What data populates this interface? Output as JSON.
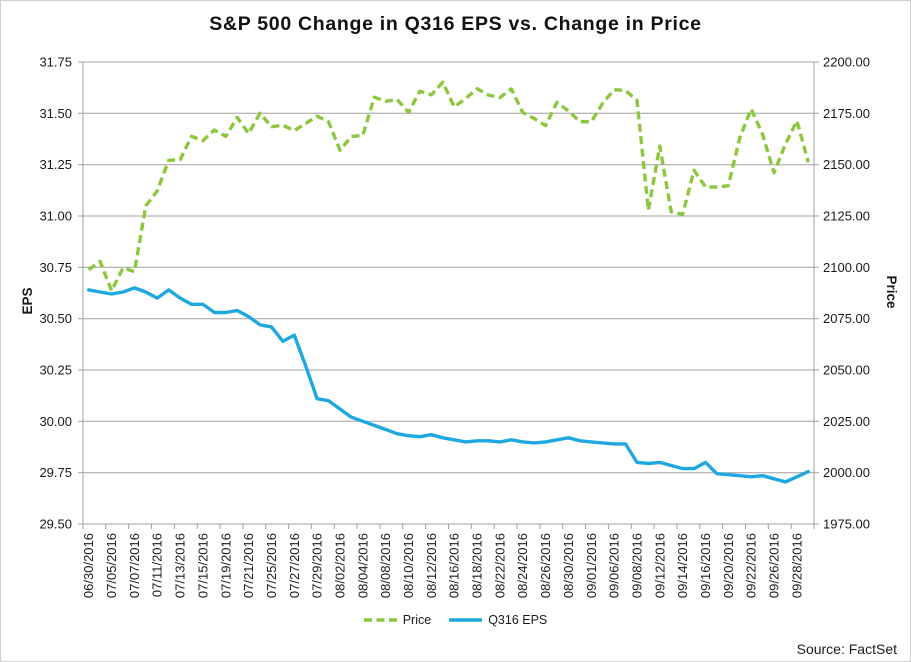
{
  "title": "S&P 500 Change in Q316 EPS vs. Change in Price",
  "source": "Source: FactSet",
  "chart_data": {
    "type": "line",
    "x_labels": [
      "06/30/2016",
      "07/05/2016",
      "07/07/2016",
      "07/11/2016",
      "07/13/2016",
      "07/15/2016",
      "07/19/2016",
      "07/21/2016",
      "07/25/2016",
      "07/27/2016",
      "07/29/2016",
      "08/02/2016",
      "08/04/2016",
      "08/08/2016",
      "08/10/2016",
      "08/12/2016",
      "08/16/2016",
      "08/18/2016",
      "08/22/2016",
      "08/24/2016",
      "08/26/2016",
      "08/30/2016",
      "09/01/2016",
      "09/06/2016",
      "09/08/2016",
      "09/12/2016",
      "09/14/2016",
      "09/16/2016",
      "09/20/2016",
      "09/22/2016",
      "09/26/2016",
      "09/28/2016"
    ],
    "label_every": 2,
    "grid": true,
    "legend_position": "bottom",
    "left_axis": {
      "title": "EPS",
      "min": 29.5,
      "max": 31.75,
      "tick_labels": [
        "31.75",
        "31.50",
        "31.25",
        "31.00",
        "30.75",
        "30.50",
        "30.25",
        "30.00",
        "29.75",
        "29.50"
      ]
    },
    "right_axis": {
      "title": "Price",
      "min": 1975.0,
      "max": 2200.0,
      "tick_labels": [
        "2200.00",
        "2175.00",
        "2150.00",
        "2125.00",
        "2100.00",
        "2075.00",
        "2050.00",
        "2025.00",
        "2000.00",
        "1975.00"
      ]
    },
    "series": [
      {
        "name": "Price",
        "axis": "right",
        "style": "dashed",
        "color": "#8DC63F",
        "values": [
          2098.86,
          2102.95,
          2088.55,
          2099.73,
          2097.9,
          2129.9,
          2137.16,
          2152.14,
          2152.43,
          2163.75,
          2161.74,
          2166.89,
          2163.78,
          2173.02,
          2165.17,
          2175.03,
          2168.48,
          2169.18,
          2166.58,
          2170.06,
          2173.6,
          2170.84,
          2157.03,
          2163.79,
          2164.25,
          2182.87,
          2180.89,
          2181.74,
          2175.49,
          2185.79,
          2184.05,
          2190.15,
          2178.15,
          2182.22,
          2187.02,
          2183.87,
          2182.64,
          2186.9,
          2175.44,
          2172.47,
          2169.04,
          2180.38,
          2176.12,
          2170.95,
          2170.86,
          2179.98,
          2186.48,
          2186.16,
          2181.3,
          2127.81,
          2159.04,
          2127.02,
          2125.77,
          2147.26,
          2139.16,
          2139.12,
          2139.76,
          2163.12,
          2177.18,
          2164.69,
          2146.1,
          2159.93,
          2171.37,
          2151.13
        ]
      },
      {
        "name": "Q316 EPS",
        "axis": "left",
        "style": "solid",
        "color": "#1FA8E0",
        "values": [
          30.64,
          30.63,
          30.62,
          30.63,
          30.65,
          30.63,
          30.6,
          30.64,
          30.6,
          30.57,
          30.57,
          30.53,
          30.53,
          30.54,
          30.51,
          30.47,
          30.46,
          30.39,
          30.42,
          30.27,
          30.11,
          30.1,
          30.06,
          30.02,
          30.0,
          29.98,
          29.96,
          29.94,
          29.93,
          29.925,
          29.935,
          29.92,
          29.91,
          29.9,
          29.905,
          29.905,
          29.9,
          29.91,
          29.9,
          29.895,
          29.9,
          29.91,
          29.92,
          29.905,
          29.9,
          29.895,
          29.89,
          29.89,
          29.8,
          29.795,
          29.8,
          29.785,
          29.77,
          29.77,
          29.8,
          29.745,
          29.74,
          29.735,
          29.73,
          29.735,
          29.72,
          29.705,
          29.73,
          29.755
        ]
      }
    ]
  }
}
